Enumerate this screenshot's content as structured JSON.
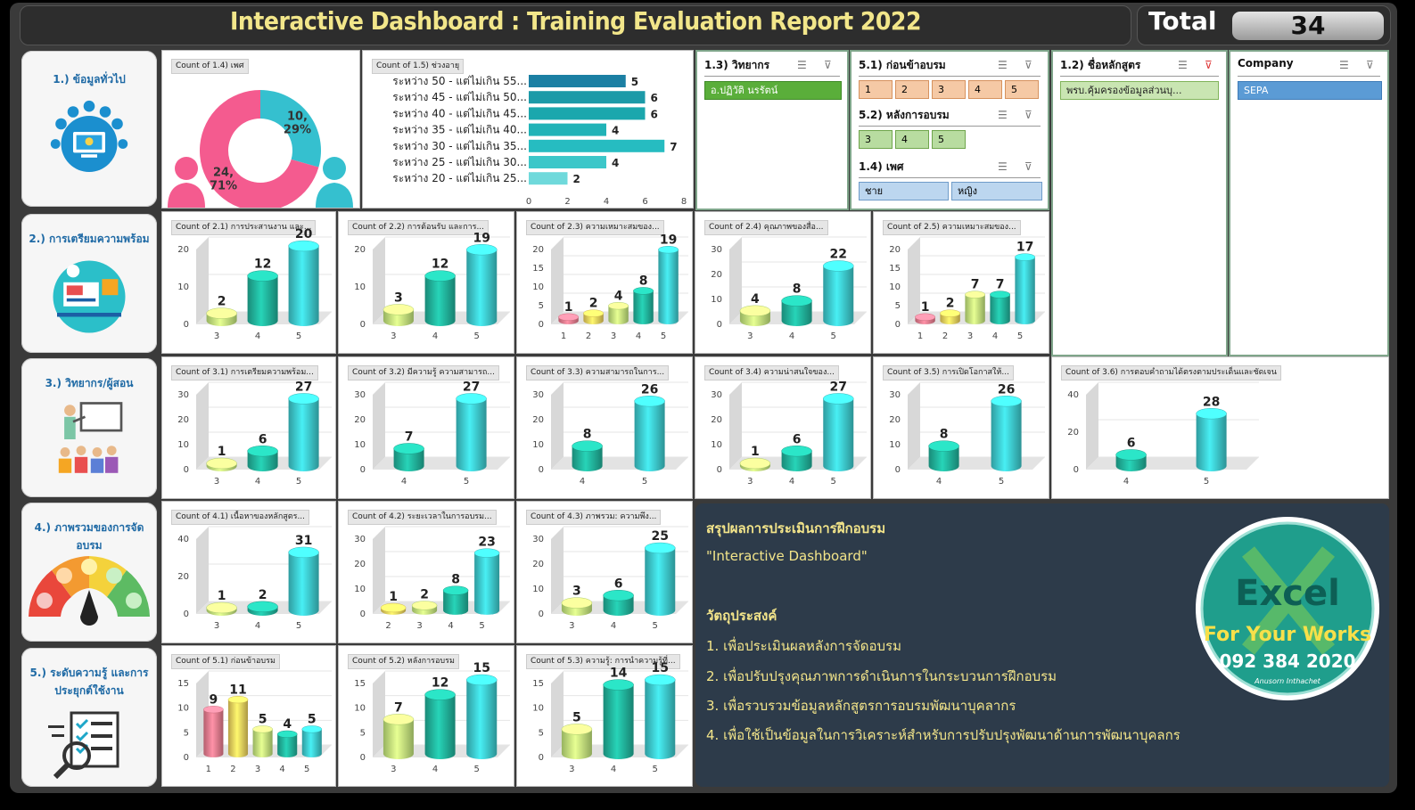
{
  "header": {
    "title": "Interactive Dashboard : Training Evaluation Report 2022",
    "total_label": "Total",
    "total_value": "34"
  },
  "sections": [
    {
      "label": "1.) ข้อมูลทั่วไป",
      "icon": "info-computer-icon"
    },
    {
      "label": "2.) การเตรียมความพร้อม",
      "icon": "presentation-board-icon"
    },
    {
      "label": "3.) วิทยากร/ผู้สอน",
      "icon": "teacher-icon"
    },
    {
      "label": "4.) ภาพรวมของการจัดอบรม",
      "icon": "satisfaction-gauge-icon"
    },
    {
      "label": "5.) ระดับความรู้ และการประยุกต์ใช้งาน",
      "icon": "checklist-icon"
    }
  ],
  "slicers": {
    "speaker": {
      "title": "1.3) วิทยากร",
      "items": [
        "อ.ปฏิวัติ นรรัตน์"
      ]
    },
    "pre": {
      "title": "5.1) ก่อนข้าอบรม",
      "items": [
        "1",
        "2",
        "3",
        "4",
        "5"
      ]
    },
    "post": {
      "title": "5.2) หลังการอบรม",
      "items": [
        "3",
        "4",
        "5"
      ]
    },
    "gender": {
      "title": "1.4) เพศ",
      "items": [
        "ชาย",
        "หญิง"
      ]
    },
    "course": {
      "title": "1.2) ชื่อหลักสูตร",
      "items": [
        "พรบ.คุ้มครองข้อมูลส่วนบุ..."
      ]
    },
    "company": {
      "title": "Company",
      "items": [
        "SEPA"
      ]
    }
  },
  "summary": {
    "heading": "สรุปผลการประเมินการฝึกอบรม",
    "subheading": "\"Interactive Dashboard\"",
    "objective_title": "วัตถุประสงค์",
    "objectives": [
      "1. เพื่อประเมินผลหลังการจัดอบรม",
      "2. เพื่อปรับปรุงคุณภาพการดำเนินการในกระบวนการฝึกอบรม",
      "3. เพื่อรวบรวมข้อมูลหลักสูตรการอบรมพัฒนาบุคลากร",
      "4. เพื่อใช้เป็นข้อมูลในการวิเคราะห์สำหรับการปรับปรุงพัฒนาด้านการพัฒนาบุคลกร"
    ],
    "logo": {
      "word": "Excel",
      "line1": "For Your Works",
      "line2": "092 384 2020",
      "signature": "Anusorn Inthachet"
    }
  },
  "colors": {
    "level1": "#f07f92",
    "level2": "#f6d860",
    "level3": "#c9ef80",
    "level4": "#22b8a0",
    "level5": "#3fd0d4",
    "pie_female": "#f45b8f",
    "pie_male": "#35c0cf",
    "hbar": "#1fa7b4"
  },
  "chart_data": [
    {
      "id": "gender",
      "type": "pie",
      "title": "Count of 1.4) เพศ",
      "categories": [
        "male",
        "female"
      ],
      "values": [
        10,
        24
      ],
      "labels": [
        "10,\n29%",
        "24,\n71%"
      ]
    },
    {
      "id": "age",
      "type": "bar",
      "orientation": "horizontal",
      "title": "Count of 1.5) ช่วงอายุ",
      "categories": [
        "ระหว่าง 50 - แต่ไม่เกิน 55...",
        "ระหว่าง 45 - แต่ไม่เกิน 50...",
        "ระหว่าง 40 - แต่ไม่เกิน 45...",
        "ระหว่าง 35 - แต่ไม่เกิน 40...",
        "ระหว่าง 30 - แต่ไม่เกิน 35...",
        "ระหว่าง 25 - แต่ไม่เกิน 30...",
        "ระหว่าง 20 - แต่ไม่เกิน 25..."
      ],
      "values": [
        5,
        6,
        6,
        4,
        7,
        4,
        2
      ],
      "xlim": [
        0,
        8
      ],
      "xticks": [
        0,
        2,
        4,
        6,
        8
      ]
    },
    {
      "id": "c2_1",
      "type": "bar",
      "title": "Count of 2.1) การประสานงาน และ...",
      "categories": [
        "3",
        "4",
        "5"
      ],
      "values": [
        2,
        12,
        20
      ],
      "ylim": [
        0,
        20
      ],
      "yticks": [
        0,
        10,
        20
      ]
    },
    {
      "id": "c2_2",
      "type": "bar",
      "title": "Count of 2.2) การต้อนรับ และการ...",
      "categories": [
        "3",
        "4",
        "5"
      ],
      "values": [
        3,
        12,
        19
      ],
      "ylim": [
        0,
        20
      ],
      "yticks": [
        0,
        10,
        20
      ]
    },
    {
      "id": "c2_3",
      "type": "bar",
      "title": "Count of 2.3) ความเหมาะสมของ...",
      "categories": [
        "1",
        "2",
        "3",
        "4",
        "5"
      ],
      "values": [
        1,
        2,
        4,
        8,
        19
      ],
      "ylim": [
        0,
        20
      ],
      "yticks": [
        0,
        5,
        10,
        15,
        20
      ]
    },
    {
      "id": "c2_4",
      "type": "bar",
      "title": "Count of 2.4) คุณภาพของสื่อ...",
      "categories": [
        "3",
        "4",
        "5"
      ],
      "values": [
        4,
        8,
        22
      ],
      "ylim": [
        0,
        30
      ],
      "yticks": [
        0,
        10,
        20,
        30
      ]
    },
    {
      "id": "c2_5",
      "type": "bar",
      "title": "Count of 2.5) ความเหมาะสมของ...",
      "categories": [
        "1",
        "2",
        "3",
        "4",
        "5"
      ],
      "values": [
        1,
        2,
        7,
        7,
        17
      ],
      "ylim": [
        0,
        20
      ],
      "yticks": [
        0,
        5,
        10,
        15,
        20
      ]
    },
    {
      "id": "c3_1",
      "type": "bar",
      "title": "Count of 3.1) การเตรียมความพร้อม...",
      "categories": [
        "3",
        "4",
        "5"
      ],
      "values": [
        1,
        6,
        27
      ],
      "ylim": [
        0,
        30
      ],
      "yticks": [
        0,
        10,
        20,
        30
      ]
    },
    {
      "id": "c3_2",
      "type": "bar",
      "title": "Count of 3.2) มีความรู้ ความสามารถ...",
      "categories": [
        "4",
        "5"
      ],
      "values": [
        7,
        27
      ],
      "ylim": [
        0,
        30
      ],
      "yticks": [
        0,
        10,
        20,
        30
      ]
    },
    {
      "id": "c3_3",
      "type": "bar",
      "title": "Count of 3.3) ความสามารถในการ...",
      "categories": [
        "4",
        "5"
      ],
      "values": [
        8,
        26
      ],
      "ylim": [
        0,
        30
      ],
      "yticks": [
        0,
        10,
        20,
        30
      ]
    },
    {
      "id": "c3_4",
      "type": "bar",
      "title": "Count of 3.4) ความน่าสนใจของ...",
      "categories": [
        "3",
        "4",
        "5"
      ],
      "values": [
        1,
        6,
        27
      ],
      "ylim": [
        0,
        30
      ],
      "yticks": [
        0,
        10,
        20,
        30
      ]
    },
    {
      "id": "c3_5",
      "type": "bar",
      "title": "Count of 3.5) การเปิดโอกาสให้...",
      "categories": [
        "4",
        "5"
      ],
      "values": [
        8,
        26
      ],
      "ylim": [
        0,
        30
      ],
      "yticks": [
        0,
        10,
        20,
        30
      ]
    },
    {
      "id": "c3_6",
      "type": "bar",
      "title": "Count of 3.6) การตอบคำถามได้ตรงตามประเด็นและชัดเจน",
      "categories": [
        "4",
        "5"
      ],
      "values": [
        6,
        28
      ],
      "ylim": [
        0,
        40
      ],
      "yticks": [
        0,
        20,
        40
      ]
    },
    {
      "id": "c4_1",
      "type": "bar",
      "title": "Count of 4.1) เนื้อหาของหลักสูตร...",
      "categories": [
        "3",
        "4",
        "5"
      ],
      "values": [
        1,
        2,
        31
      ],
      "ylim": [
        0,
        40
      ],
      "yticks": [
        0,
        20,
        40
      ]
    },
    {
      "id": "c4_2",
      "type": "bar",
      "title": "Count of 4.2) ระยะเวลาในการอบรม...",
      "categories": [
        "2",
        "3",
        "4",
        "5"
      ],
      "values": [
        1,
        2,
        8,
        23
      ],
      "ylim": [
        0,
        30
      ],
      "yticks": [
        0,
        10,
        20,
        30
      ]
    },
    {
      "id": "c4_3",
      "type": "bar",
      "title": "Count of 4.3) ภาพรวม: ความพึง...",
      "categories": [
        "3",
        "4",
        "5"
      ],
      "values": [
        3,
        6,
        25
      ],
      "ylim": [
        0,
        30
      ],
      "yticks": [
        0,
        10,
        20,
        30
      ]
    },
    {
      "id": "c5_1",
      "type": "bar",
      "title": "Count of 5.1) ก่อนข้าอบรม",
      "categories": [
        "1",
        "2",
        "3",
        "4",
        "5"
      ],
      "values": [
        9,
        11,
        5,
        4,
        5
      ],
      "ylim": [
        0,
        15
      ],
      "yticks": [
        0,
        5,
        10,
        15
      ]
    },
    {
      "id": "c5_2",
      "type": "bar",
      "title": "Count of 5.2) หลังการอบรม",
      "categories": [
        "3",
        "4",
        "5"
      ],
      "values": [
        7,
        12,
        15
      ],
      "ylim": [
        0,
        15
      ],
      "yticks": [
        0,
        5,
        10,
        15
      ]
    },
    {
      "id": "c5_3",
      "type": "bar",
      "title": "Count of 5.3) ความรู้: การนำความรู้ที่...",
      "categories": [
        "3",
        "4",
        "5"
      ],
      "values": [
        5,
        14,
        15
      ],
      "ylim": [
        0,
        15
      ],
      "yticks": [
        0,
        5,
        10,
        15
      ]
    }
  ]
}
